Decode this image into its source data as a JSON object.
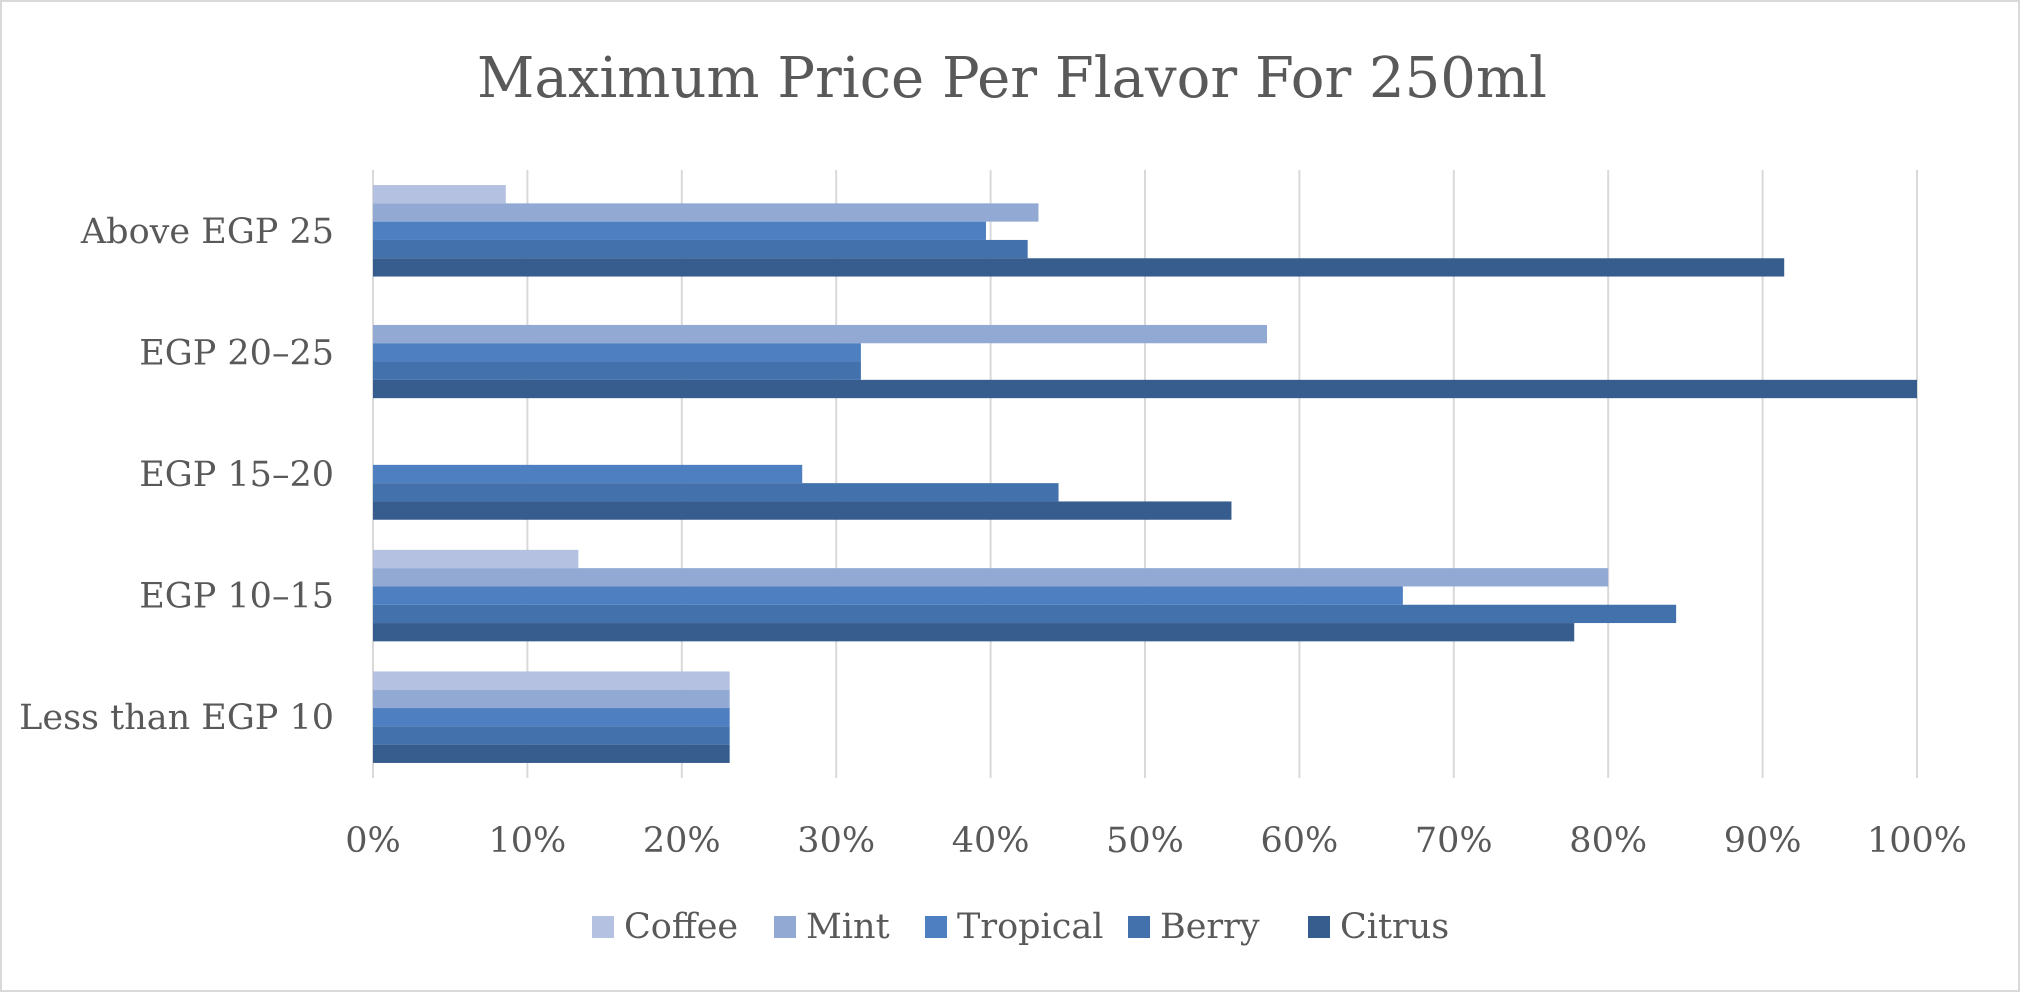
{
  "chart_data": {
    "type": "bar",
    "orientation": "horizontal",
    "title": "Maximum Price Per Flavor For 250ml",
    "xlabel": "",
    "ylabel": "",
    "categories": [
      "Less than EGP 10",
      "EGP 10–15",
      "EGP 15–20",
      "EGP 20–25",
      "Above EGP 25"
    ],
    "xlim": [
      0,
      100
    ],
    "x_ticks": [
      "0%",
      "10%",
      "20%",
      "30%",
      "40%",
      "50%",
      "60%",
      "70%",
      "80%",
      "90%",
      "100%"
    ],
    "grid": true,
    "legend_position": "bottom",
    "series": [
      {
        "name": "Coffee",
        "color": "#b4c1e1",
        "values": [
          23.1,
          13.3,
          0,
          0,
          8.6
        ]
      },
      {
        "name": "Mint",
        "color": "#92a9d3",
        "values": [
          23.1,
          80.0,
          0,
          57.9,
          43.1
        ]
      },
      {
        "name": "Tropical",
        "color": "#4e80c1",
        "values": [
          23.1,
          66.7,
          27.8,
          31.6,
          39.7
        ]
      },
      {
        "name": "Berry",
        "color": "#4271ab",
        "values": [
          23.1,
          84.4,
          44.4,
          31.6,
          42.4
        ]
      },
      {
        "name": "Citrus",
        "color": "#375d8f",
        "values": [
          23.1,
          77.8,
          55.6,
          100.0,
          91.4
        ]
      }
    ]
  }
}
